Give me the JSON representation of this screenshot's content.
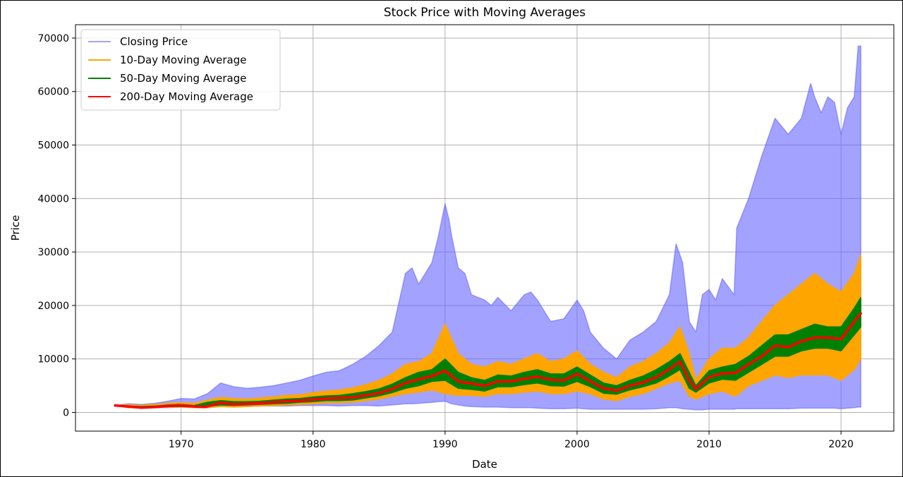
{
  "chart_data": {
    "type": "line",
    "title": "Stock Price with Moving Averages",
    "xlabel": "Date",
    "ylabel": "Price",
    "xlim": [
      1962,
      2024
    ],
    "ylim": [
      -3500,
      72500
    ],
    "xticks": [
      1970,
      1980,
      1990,
      2000,
      2010,
      2020
    ],
    "yticks": [
      0,
      10000,
      20000,
      30000,
      40000,
      50000,
      60000,
      70000
    ],
    "grid": true,
    "legend_position": "top-left",
    "series": [
      {
        "name": "Closing Price",
        "color": "#6666ff",
        "style": "band",
        "x": [
          1965.0,
          1966.0,
          1967.0,
          1968.0,
          1969.0,
          1970.0,
          1971.0,
          1972.0,
          1973.0,
          1974.0,
          1975.0,
          1976.0,
          1977.0,
          1978.0,
          1979.0,
          1980.0,
          1981.0,
          1982.0,
          1983.0,
          1984.0,
          1985.0,
          1986.0,
          1987.0,
          1987.5,
          1988.0,
          1989.0,
          1989.5,
          1990.0,
          1990.3,
          1990.5,
          1991.0,
          1991.5,
          1992.0,
          1993.0,
          1993.5,
          1994.0,
          1995.0,
          1996.0,
          1996.5,
          1997.0,
          1998.0,
          1999.0,
          2000.0,
          2000.5,
          2001.0,
          2002.0,
          2003.0,
          2004.0,
          2005.0,
          2006.0,
          2007.0,
          2007.5,
          2008.0,
          2008.5,
          2009.0,
          2009.5,
          2010.0,
          2010.5,
          2011.0,
          2011.9,
          2012.1,
          2013.0,
          2014.0,
          2015.0,
          2016.0,
          2017.0,
          2017.7,
          2018.0,
          2018.5,
          2019.0,
          2019.5,
          2020.0,
          2020.5,
          2021.0,
          2021.3,
          2021.5
        ],
        "high": [
          1300,
          1600,
          1500,
          1700,
          2100,
          2600,
          2500,
          3500,
          5500,
          4800,
          4500,
          4700,
          5000,
          5500,
          6000,
          6800,
          7500,
          7800,
          9000,
          10500,
          12500,
          15000,
          26000,
          27000,
          24000,
          28000,
          33000,
          39000,
          36000,
          33000,
          27000,
          26000,
          22000,
          21000,
          20000,
          21500,
          19000,
          22000,
          22500,
          21000,
          17000,
          17500,
          21000,
          19000,
          15000,
          12000,
          10000,
          13500,
          15000,
          17000,
          22000,
          31500,
          28000,
          17000,
          15000,
          22000,
          23000,
          21000,
          25000,
          22000,
          34500,
          40000,
          48000,
          55000,
          52000,
          55000,
          61500,
          59000,
          56000,
          59000,
          58000,
          52000,
          57000,
          59000,
          68500,
          68500
        ],
        "low": [
          1300,
          1000,
          800,
          900,
          900,
          1000,
          900,
          900,
          1100,
          1000,
          1100,
          1200,
          1200,
          1200,
          1300,
          1300,
          1300,
          1200,
          1300,
          1300,
          1200,
          1400,
          1600,
          1600,
          1700,
          1900,
          2000,
          2100,
          1800,
          1600,
          1400,
          1200,
          1100,
          1000,
          1000,
          1000,
          900,
          900,
          900,
          800,
          700,
          700,
          800,
          700,
          600,
          600,
          600,
          600,
          600,
          700,
          900,
          900,
          700,
          600,
          500,
          500,
          600,
          600,
          600,
          600,
          700,
          700,
          700,
          700,
          700,
          800,
          800,
          800,
          800,
          800,
          800,
          700,
          800,
          900,
          1000,
          1000
        ]
      },
      {
        "name": "10-Day Moving Average",
        "color": "#ffa500",
        "style": "band",
        "x": [
          1965.0,
          1966.0,
          1967.0,
          1968.0,
          1969.0,
          1970.0,
          1971.0,
          1972.0,
          1973.0,
          1974.0,
          1975.0,
          1976.0,
          1977.0,
          1978.0,
          1979.0,
          1980.0,
          1981.0,
          1982.0,
          1983.0,
          1984.0,
          1985.0,
          1986.0,
          1987.0,
          1988.0,
          1989.0,
          1990.0,
          1991.0,
          1992.0,
          1993.0,
          1994.0,
          1995.0,
          1996.0,
          1997.0,
          1998.0,
          1999.0,
          2000.0,
          2001.0,
          2002.0,
          2003.0,
          2004.0,
          2005.0,
          2006.0,
          2007.0,
          2007.8,
          2008.5,
          2009.0,
          2010.0,
          2011.0,
          2012.0,
          2013.0,
          2014.0,
          2015.0,
          2016.0,
          2017.0,
          2018.0,
          2019.0,
          2020.0,
          2021.0,
          2021.5
        ],
        "high": [
          1300,
          1400,
          1300,
          1500,
          1700,
          1800,
          1700,
          2300,
          2800,
          2600,
          2500,
          2700,
          2900,
          3200,
          3300,
          3700,
          4000,
          4200,
          4600,
          5200,
          6000,
          7200,
          9000,
          9500,
          11000,
          16500,
          11000,
          9000,
          8500,
          9500,
          9000,
          10000,
          11000,
          9500,
          10000,
          11500,
          9000,
          7500,
          6500,
          8500,
          9500,
          11000,
          13000,
          16000,
          11000,
          6000,
          10000,
          12000,
          12000,
          14000,
          17000,
          20000,
          22000,
          24000,
          26000,
          24000,
          22500,
          26000,
          29500
        ],
        "low": [
          1300,
          900,
          800,
          900,
          1000,
          1000,
          900,
          900,
          1100,
          1000,
          1100,
          1200,
          1300,
          1400,
          1500,
          1600,
          1800,
          1800,
          1900,
          2200,
          2500,
          3000,
          3500,
          3800,
          4200,
          3500,
          3200,
          3200,
          3000,
          3500,
          3500,
          3800,
          4000,
          3500,
          3500,
          4000,
          3500,
          2500,
          2200,
          3000,
          3500,
          4500,
          5500,
          6000,
          3000,
          2500,
          3500,
          4000,
          3000,
          5000,
          6000,
          7000,
          6500,
          7000,
          7000,
          7000,
          6000,
          8000,
          10000
        ]
      },
      {
        "name": "50-Day Moving Average",
        "color": "#008000",
        "style": "band",
        "x": [
          1965.0,
          1966.0,
          1967.0,
          1968.0,
          1969.0,
          1970.0,
          1971.0,
          1972.0,
          1973.0,
          1974.0,
          1975.0,
          1976.0,
          1977.0,
          1978.0,
          1979.0,
          1980.0,
          1981.0,
          1982.0,
          1983.0,
          1984.0,
          1985.0,
          1986.0,
          1987.0,
          1988.0,
          1989.0,
          1990.0,
          1991.0,
          1992.0,
          1993.0,
          1994.0,
          1995.0,
          1996.0,
          1997.0,
          1998.0,
          1999.0,
          2000.0,
          2001.0,
          2002.0,
          2003.0,
          2004.0,
          2005.0,
          2006.0,
          2007.0,
          2007.8,
          2008.5,
          2009.0,
          2010.0,
          2011.0,
          2012.0,
          2013.0,
          2014.0,
          2015.0,
          2016.0,
          2017.0,
          2018.0,
          2019.0,
          2020.0,
          2021.0,
          2021.5
        ],
        "high": [
          1300,
          1200,
          1100,
          1200,
          1400,
          1500,
          1300,
          1900,
          2200,
          2000,
          2000,
          2100,
          2300,
          2500,
          2600,
          2900,
          3100,
          3200,
          3500,
          3900,
          4400,
          5300,
          6500,
          7500,
          8000,
          10000,
          7500,
          6500,
          6000,
          7000,
          6800,
          7500,
          8000,
          7200,
          7200,
          8500,
          7000,
          5500,
          5000,
          6000,
          6800,
          8000,
          9500,
          11000,
          7500,
          5000,
          7800,
          8500,
          9000,
          10500,
          12500,
          14500,
          14500,
          15500,
          16500,
          16000,
          16000,
          19500,
          21500
        ],
        "low": [
          1300,
          1000,
          900,
          1000,
          1100,
          1100,
          1000,
          1100,
          1400,
          1300,
          1400,
          1500,
          1600,
          1700,
          1900,
          2000,
          2200,
          2200,
          2300,
          2700,
          3100,
          3700,
          4500,
          5000,
          5800,
          6000,
          4500,
          4300,
          4000,
          4800,
          4800,
          5200,
          5500,
          5000,
          4900,
          5800,
          4800,
          3600,
          3400,
          4200,
          4800,
          5500,
          6800,
          8000,
          4500,
          3800,
          5500,
          6200,
          6000,
          7500,
          9000,
          10500,
          10500,
          11500,
          12000,
          12000,
          11500,
          14500,
          16000
        ]
      },
      {
        "name": "200-Day Moving Average",
        "color": "#ff0000",
        "style": "line",
        "x": [
          1965.0,
          1966.0,
          1967.0,
          1968.0,
          1969.0,
          1970.0,
          1971.0,
          1971.8,
          1973.0,
          1974.0,
          1975.0,
          1976.0,
          1977.0,
          1978.0,
          1979.0,
          1980.0,
          1981.0,
          1982.0,
          1983.0,
          1984.0,
          1985.0,
          1986.0,
          1987.0,
          1988.0,
          1989.0,
          1990.0,
          1991.0,
          1992.0,
          1993.0,
          1994.0,
          1995.0,
          1996.0,
          1997.0,
          1998.0,
          1999.0,
          2000.0,
          2001.0,
          2002.0,
          2003.0,
          2004.0,
          2005.0,
          2006.0,
          2007.0,
          2007.8,
          2008.5,
          2009.0,
          2010.0,
          2011.0,
          2012.0,
          2013.0,
          2014.0,
          2015.0,
          2016.0,
          2017.0,
          2018.0,
          2019.0,
          2020.0,
          2021.0,
          2021.5
        ],
        "values": [
          1300,
          1100,
          900,
          1000,
          1200,
          1300,
          1100,
          1000,
          1800,
          1500,
          1600,
          1700,
          1900,
          2100,
          2200,
          2400,
          2600,
          2700,
          2800,
          3200,
          3600,
          4400,
          5500,
          6200,
          6800,
          7800,
          5800,
          5400,
          5000,
          5800,
          5800,
          6300,
          6700,
          6100,
          6000,
          7200,
          5800,
          4500,
          4100,
          5000,
          5600,
          6600,
          8100,
          9500,
          6000,
          4400,
          6600,
          7300,
          7400,
          9000,
          10500,
          12500,
          12200,
          13300,
          14000,
          14000,
          13700,
          17000,
          18500
        ]
      }
    ]
  }
}
